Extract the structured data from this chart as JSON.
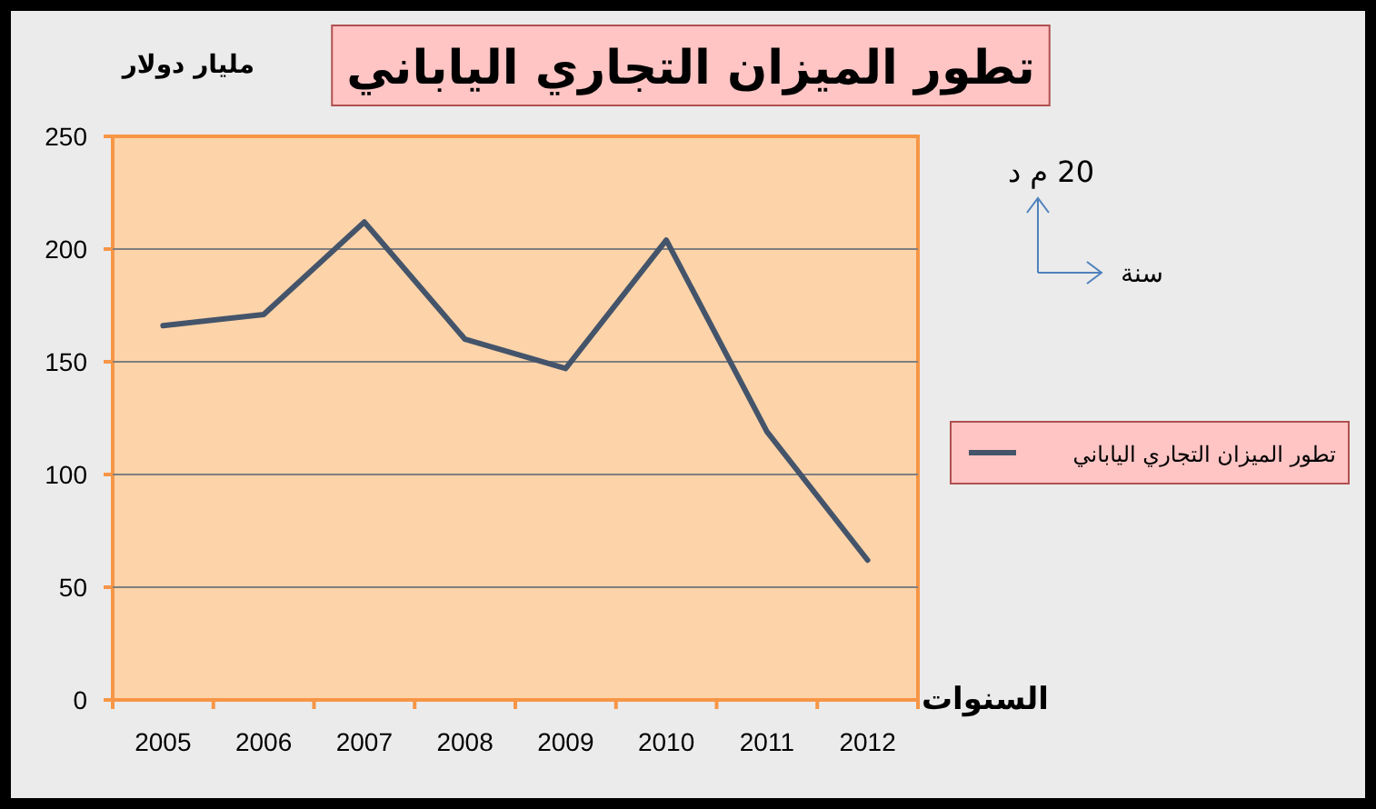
{
  "chart_data": {
    "type": "line",
    "title": "تطور الميزان التجاري الياباني",
    "xlabel": "السنوات",
    "ylabel": "مليار دولار",
    "categories": [
      "2005",
      "2006",
      "2007",
      "2008",
      "2009",
      "2010",
      "2011",
      "2012"
    ],
    "series": [
      {
        "name": "تطور الميزان التجاري الياباني",
        "color": "#44546a",
        "values": [
          166,
          171,
          212,
          160,
          147,
          204,
          119,
          62
        ]
      }
    ],
    "ylim": [
      0,
      250
    ],
    "yticks": [
      0,
      50,
      100,
      150,
      200,
      250
    ],
    "grid": "y",
    "legend": "right",
    "annotations": [
      "20 م د",
      "سنة"
    ]
  }
}
